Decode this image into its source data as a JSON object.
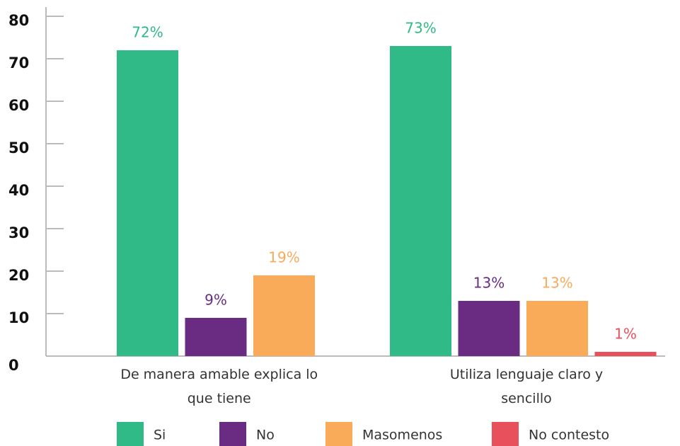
{
  "chart_data": {
    "type": "bar",
    "categories": [
      "De manera amable explica lo que tiene",
      "Utiliza lenguaje claro y sencillo"
    ],
    "series": [
      {
        "name": "Si",
        "color": "#2fba87",
        "values": [
          72,
          73
        ],
        "value_labels": [
          "72%",
          "73%"
        ]
      },
      {
        "name": "No",
        "color": "#6a2c82",
        "values": [
          9,
          13
        ],
        "value_labels": [
          "9%",
          "13%"
        ]
      },
      {
        "name": "Masomenos",
        "color": "#f9ab5a",
        "values": [
          19,
          13
        ],
        "value_labels": [
          "19%",
          "13%"
        ]
      },
      {
        "name": "No contesto",
        "color": "#e8505b",
        "values": [
          null,
          1
        ],
        "value_labels": [
          null,
          "1%"
        ]
      }
    ],
    "ylim": [
      0,
      80
    ],
    "yticks": [
      0,
      10,
      20,
      30,
      40,
      50,
      60,
      70,
      80
    ],
    "legend": "bottom"
  }
}
